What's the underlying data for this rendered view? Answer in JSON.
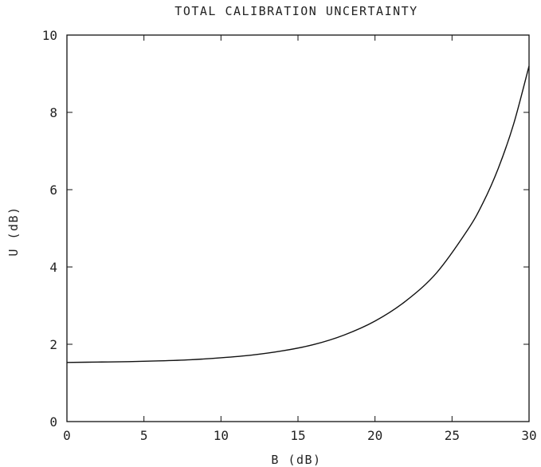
{
  "chart_data": {
    "type": "line",
    "title": "TOTAL CALIBRATION UNCERTAINTY",
    "xlabel": "B (dB)",
    "ylabel": "U (dB)",
    "xlim": [
      0,
      30
    ],
    "ylim": [
      0,
      10
    ],
    "xticks": [
      0,
      5,
      10,
      15,
      20,
      25,
      30
    ],
    "yticks": [
      0,
      2,
      4,
      6,
      8,
      10
    ],
    "xtick_labels": [
      "0",
      "5",
      "10",
      "15",
      "20",
      "25",
      "30"
    ],
    "ytick_labels": [
      "0",
      "2",
      "4",
      "6",
      "8",
      "10"
    ],
    "grid": false,
    "series": [
      {
        "x": [
          0,
          2,
          4,
          6,
          8,
          10,
          12,
          14,
          16,
          18,
          20,
          22,
          24,
          26,
          27,
          28,
          29,
          30
        ],
        "y": [
          1.53,
          1.54,
          1.55,
          1.57,
          1.6,
          1.65,
          1.72,
          1.83,
          1.99,
          2.24,
          2.6,
          3.12,
          3.85,
          4.95,
          5.65,
          6.55,
          7.7,
          9.2
        ]
      }
    ]
  }
}
